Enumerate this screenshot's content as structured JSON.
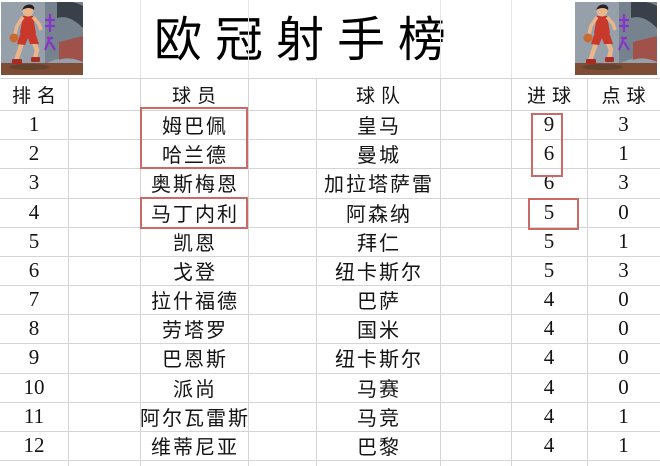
{
  "title": "欧冠射手榜",
  "chart_data": {
    "type": "table",
    "title": "欧冠射手榜",
    "columns": [
      "排名",
      "球员",
      "球队",
      "进球",
      "点球"
    ],
    "rows": [
      {
        "rank": "1",
        "player": "姆巴佩",
        "team": "皇马",
        "goals": "9",
        "penalties": "3"
      },
      {
        "rank": "2",
        "player": "哈兰德",
        "team": "曼城",
        "goals": "6",
        "penalties": "1"
      },
      {
        "rank": "3",
        "player": "奥斯梅恩",
        "team": "加拉塔萨雷",
        "goals": "6",
        "penalties": "3"
      },
      {
        "rank": "4",
        "player": "马丁内利",
        "team": "阿森纳",
        "goals": "5",
        "penalties": "0"
      },
      {
        "rank": "5",
        "player": "凯恩",
        "team": "拜仁",
        "goals": "5",
        "penalties": "1"
      },
      {
        "rank": "6",
        "player": "戈登",
        "team": "纽卡斯尔",
        "goals": "5",
        "penalties": "3"
      },
      {
        "rank": "7",
        "player": "拉什福德",
        "team": "巴萨",
        "goals": "4",
        "penalties": "0"
      },
      {
        "rank": "8",
        "player": "劳塔罗",
        "team": "国米",
        "goals": "4",
        "penalties": "0"
      },
      {
        "rank": "9",
        "player": "巴恩斯",
        "team": "纽卡斯尔",
        "goals": "4",
        "penalties": "0"
      },
      {
        "rank": "10",
        "player": "派尚",
        "team": "马赛",
        "goals": "4",
        "penalties": "0"
      },
      {
        "rank": "11",
        "player": "阿尔瓦雷斯",
        "team": "马竞",
        "goals": "4",
        "penalties": "1"
      },
      {
        "rank": "12",
        "player": "维蒂尼亚",
        "team": "巴黎",
        "goals": "4",
        "penalties": "1"
      }
    ],
    "annotations": {
      "boxed_player_ranks": [
        "1",
        "2",
        "4"
      ],
      "boxed_goals_ranks": [
        "1",
        "2",
        "4"
      ]
    },
    "layout_hints": "white spreadsheet grid, light gray gridlines, red highlight rectangles"
  },
  "icons": {
    "corner_artwork": "basketball-player-illustration with purple watermark"
  },
  "colors": {
    "annotation_red": "#c96a66",
    "gridline": "#d4d4d4",
    "text": "#141414",
    "artwork_bg": "#96a0aa",
    "artwork_red": "#c8382b",
    "artwork_floor": "#7d4e35",
    "artwork_purple": "#8a2fd2"
  }
}
